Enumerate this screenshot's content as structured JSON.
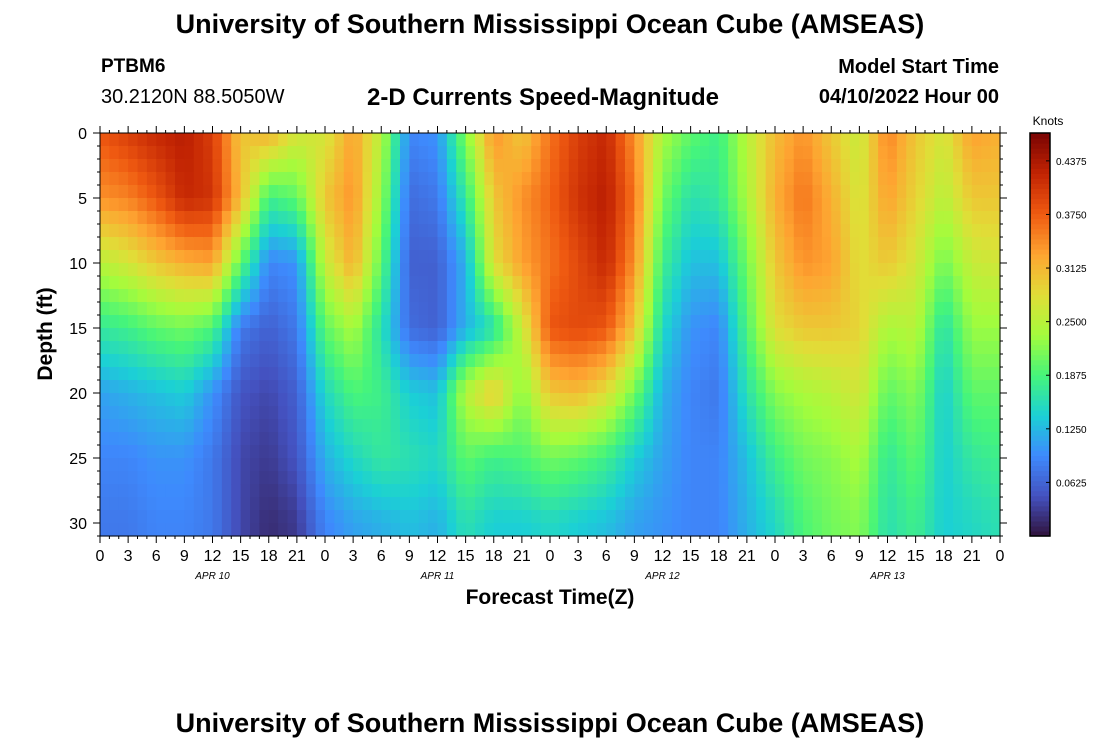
{
  "header": {
    "title": "University of Southern Mississippi Ocean Cube (AMSEAS)",
    "station_id": "PTBM6",
    "station_coords": "30.2120N  88.5050W",
    "subtitle": "2-D Currents Speed-Magnitude",
    "model_start_label": "Model Start Time",
    "model_start_value": "04/10/2022 Hour 00"
  },
  "footer": {
    "title": "University of Southern Mississippi Ocean Cube (AMSEAS)"
  },
  "chart_data": {
    "type": "heatmap",
    "title": "2-D Currents Speed-Magnitude",
    "xlabel": "Forecast Time(Z)",
    "ylabel": "Depth (ft)",
    "x_ticks": [
      "0",
      "3",
      "6",
      "9",
      "12",
      "15",
      "18",
      "21",
      "0",
      "3",
      "6",
      "9",
      "12",
      "15",
      "18",
      "21",
      "0",
      "3",
      "6",
      "9",
      "12",
      "15",
      "18",
      "21",
      "0",
      "3",
      "6",
      "9",
      "12",
      "15",
      "18",
      "21",
      "0"
    ],
    "x_day_labels": [
      "APR 10",
      "APR 11",
      "APR 12",
      "APR 13"
    ],
    "xlim_hours": [
      0,
      96
    ],
    "y_ticks": [
      0,
      5,
      10,
      15,
      20,
      25,
      30
    ],
    "ylim": [
      0,
      31
    ],
    "y_inverted": true,
    "colorbar": {
      "label": "Knots",
      "ticks": [
        "0.4375",
        "0.3750",
        "0.3125",
        "0.2500",
        "0.1875",
        "0.1250",
        "0.0625"
      ],
      "range": [
        0.0,
        0.47
      ],
      "colormap": "turbo"
    },
    "grid": false,
    "x_hours": [
      0,
      3,
      6,
      9,
      12,
      15,
      18,
      21,
      24,
      27,
      30,
      33,
      36,
      39,
      42,
      45,
      48,
      51,
      54,
      57,
      60,
      63,
      66,
      69,
      72,
      75,
      78,
      81,
      84,
      87,
      90,
      93,
      96
    ],
    "depths_ft": [
      0,
      5,
      10,
      15,
      20,
      25,
      30
    ],
    "values_knots": [
      [
        0.38,
        0.4,
        0.42,
        0.43,
        0.4,
        0.3,
        0.32,
        0.27,
        0.27,
        0.33,
        0.25,
        0.09,
        0.1,
        0.22,
        0.34,
        0.3,
        0.36,
        0.4,
        0.42,
        0.34,
        0.24,
        0.2,
        0.18,
        0.25,
        0.31,
        0.34,
        0.3,
        0.26,
        0.35,
        0.3,
        0.27,
        0.33,
        0.32
      ],
      [
        0.34,
        0.35,
        0.38,
        0.42,
        0.41,
        0.31,
        0.18,
        0.2,
        0.3,
        0.34,
        0.23,
        0.07,
        0.08,
        0.17,
        0.3,
        0.34,
        0.37,
        0.41,
        0.43,
        0.36,
        0.21,
        0.16,
        0.17,
        0.24,
        0.32,
        0.36,
        0.32,
        0.27,
        0.33,
        0.29,
        0.25,
        0.3,
        0.3
      ],
      [
        0.25,
        0.27,
        0.3,
        0.32,
        0.33,
        0.2,
        0.09,
        0.1,
        0.26,
        0.32,
        0.2,
        0.06,
        0.06,
        0.12,
        0.28,
        0.33,
        0.36,
        0.39,
        0.42,
        0.34,
        0.18,
        0.13,
        0.13,
        0.21,
        0.3,
        0.34,
        0.33,
        0.28,
        0.3,
        0.27,
        0.21,
        0.26,
        0.27
      ],
      [
        0.17,
        0.18,
        0.2,
        0.21,
        0.19,
        0.08,
        0.06,
        0.08,
        0.2,
        0.24,
        0.16,
        0.07,
        0.06,
        0.12,
        0.16,
        0.26,
        0.38,
        0.39,
        0.38,
        0.3,
        0.15,
        0.1,
        0.09,
        0.19,
        0.28,
        0.3,
        0.3,
        0.29,
        0.24,
        0.25,
        0.16,
        0.23,
        0.23
      ],
      [
        0.11,
        0.12,
        0.13,
        0.14,
        0.1,
        0.05,
        0.04,
        0.06,
        0.15,
        0.19,
        0.18,
        0.14,
        0.13,
        0.25,
        0.3,
        0.22,
        0.3,
        0.31,
        0.28,
        0.21,
        0.12,
        0.09,
        0.08,
        0.16,
        0.22,
        0.24,
        0.25,
        0.27,
        0.2,
        0.22,
        0.14,
        0.2,
        0.2
      ],
      [
        0.09,
        0.09,
        0.1,
        0.1,
        0.08,
        0.04,
        0.03,
        0.05,
        0.12,
        0.15,
        0.17,
        0.16,
        0.15,
        0.2,
        0.18,
        0.19,
        0.21,
        0.2,
        0.18,
        0.14,
        0.11,
        0.09,
        0.09,
        0.13,
        0.18,
        0.21,
        0.22,
        0.24,
        0.17,
        0.2,
        0.14,
        0.17,
        0.18
      ],
      [
        0.08,
        0.08,
        0.09,
        0.09,
        0.08,
        0.04,
        0.02,
        0.03,
        0.09,
        0.11,
        0.12,
        0.13,
        0.12,
        0.16,
        0.14,
        0.14,
        0.15,
        0.14,
        0.13,
        0.11,
        0.1,
        0.09,
        0.09,
        0.12,
        0.15,
        0.19,
        0.21,
        0.22,
        0.16,
        0.18,
        0.14,
        0.15,
        0.16
      ]
    ]
  }
}
